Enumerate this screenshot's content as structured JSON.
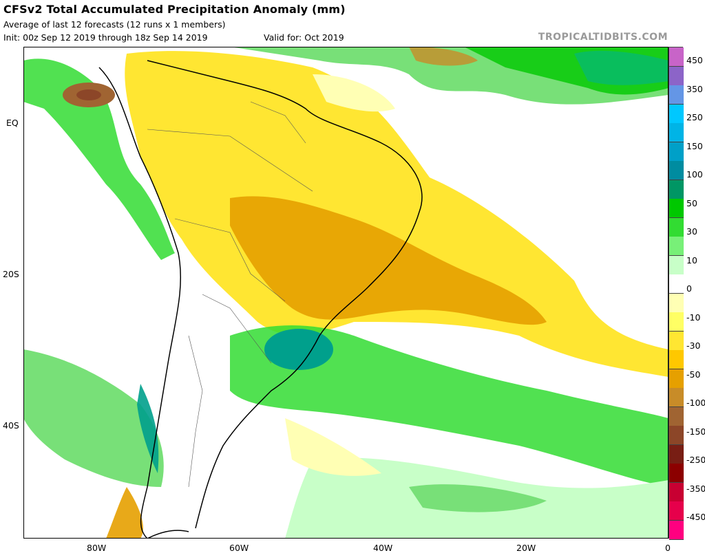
{
  "header": {
    "title": "CFSv2 Total Accumulated Precipitation Anomaly (mm)",
    "subtitle": "Average of last 12 forecasts (12 runs x 1 members)",
    "init": "Init: 00z Sep 12 2019 through 18z Sep 14 2019",
    "valid": "Valid for: Oct 2019",
    "brand": "TROPICALTIDBITS.COM"
  },
  "axes": {
    "lat_labels": [
      "EQ",
      "20S",
      "40S"
    ],
    "lon_labels": [
      "80W",
      "60W",
      "40W",
      "20W",
      "0"
    ]
  },
  "colorbar": {
    "labels": [
      "450",
      "350",
      "250",
      "150",
      "100",
      "50",
      "30",
      "10",
      "0",
      "-10",
      "-30",
      "-50",
      "-100",
      "-150",
      "-250",
      "-350",
      "-450"
    ],
    "colors": [
      "#c864c8",
      "#8c64c8",
      "#6496e6",
      "#00c8ff",
      "#00b4e6",
      "#00a0c8",
      "#008ca0",
      "#009664",
      "#00c800",
      "#32dc32",
      "#78f078",
      "#c8ffc8",
      "#ffffff",
      "#ffffb4",
      "#ffff64",
      "#ffe632",
      "#ffc800",
      "#e6a000",
      "#c88c28",
      "#a06432",
      "#8c4628",
      "#781e14",
      "#8c0000",
      "#c80032",
      "#e6004b",
      "#ff0080"
    ]
  }
}
